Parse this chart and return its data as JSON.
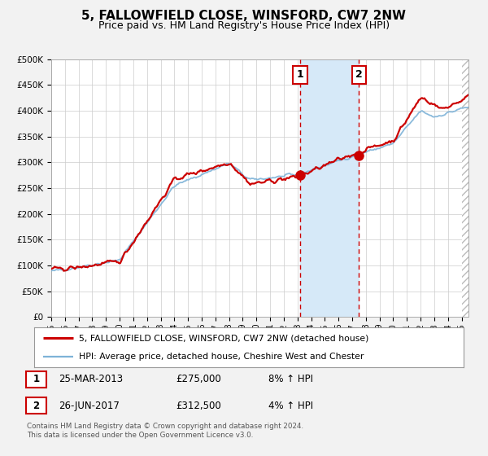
{
  "title": "5, FALLOWFIELD CLOSE, WINSFORD, CW7 2NW",
  "subtitle": "Price paid vs. HM Land Registry's House Price Index (HPI)",
  "ylim": [
    0,
    500000
  ],
  "yticks": [
    0,
    50000,
    100000,
    150000,
    200000,
    250000,
    300000,
    350000,
    400000,
    450000,
    500000
  ],
  "ytick_labels": [
    "£0",
    "£50K",
    "£100K",
    "£150K",
    "£200K",
    "£250K",
    "£300K",
    "£350K",
    "£400K",
    "£450K",
    "£500K"
  ],
  "xlim_start": 1995.0,
  "xlim_end": 2025.5,
  "background_color": "#f2f2f2",
  "plot_bg_color": "#ffffff",
  "shaded_region": [
    2013.2,
    2017.5
  ],
  "shaded_color": "#d6e9f8",
  "vline1_x": 2013.2,
  "vline2_x": 2017.5,
  "vline_color": "#cc0000",
  "marker1_x": 2013.2,
  "marker1_y": 275000,
  "marker2_x": 2017.5,
  "marker2_y": 312500,
  "marker_color": "#cc0000",
  "legend_property_label": "5, FALLOWFIELD CLOSE, WINSFORD, CW7 2NW (detached house)",
  "legend_hpi_label": "HPI: Average price, detached house, Cheshire West and Chester",
  "property_line_color": "#cc0000",
  "hpi_line_color": "#7eb3d8",
  "annotation1_num": "1",
  "annotation1_date": "25-MAR-2013",
  "annotation1_price": "£275,000",
  "annotation1_hpi": "8% ↑ HPI",
  "annotation2_num": "2",
  "annotation2_date": "26-JUN-2017",
  "annotation2_price": "£312,500",
  "annotation2_hpi": "4% ↑ HPI",
  "footer_line1": "Contains HM Land Registry data © Crown copyright and database right 2024.",
  "footer_line2": "This data is licensed under the Open Government Licence v3.0.",
  "grid_color": "#cccccc",
  "title_fontsize": 11,
  "subtitle_fontsize": 9,
  "num_box_color": "#cc0000"
}
